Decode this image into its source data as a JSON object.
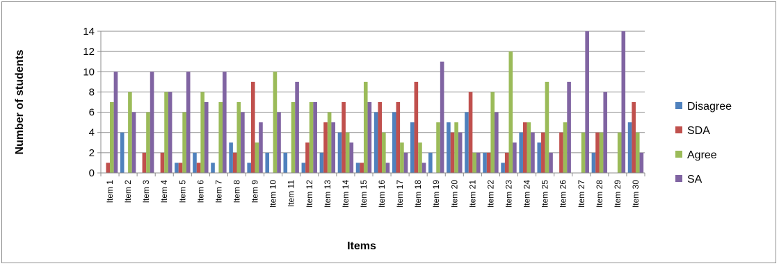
{
  "chart_data": {
    "type": "bar",
    "title": "",
    "xlabel": "Items",
    "ylabel": "Number of students",
    "ylim": [
      0,
      14
    ],
    "yticks": [
      0,
      2,
      4,
      6,
      8,
      10,
      12,
      14
    ],
    "grid": true,
    "legend_position": "right",
    "categories": [
      "Item 1",
      "Item 2",
      "Item 3",
      "Item 4",
      "Item 5",
      "Item 6",
      "Item 7",
      "Item 8",
      "Item 9",
      "Item 10",
      "Item 11",
      "Item 12",
      "Item 13",
      "Item 14",
      "Item 15",
      "Item 16",
      "Item 17",
      "Item 18",
      "Item 19",
      "Item 20",
      "Item 21",
      "Item 22",
      "Item 23",
      "Item 24",
      "Item 25",
      "Item 26",
      "Item 27",
      "Item 28",
      "Item 29",
      "Item 30"
    ],
    "series": [
      {
        "name": "Disagree",
        "color": "#4f81bd",
        "values": [
          0,
          4,
          0,
          0,
          1,
          2,
          1,
          3,
          1,
          2,
          2,
          1,
          2,
          4,
          1,
          6,
          6,
          5,
          2,
          5,
          6,
          2,
          1,
          4,
          3,
          0,
          0,
          2,
          0,
          5
        ]
      },
      {
        "name": "SDA",
        "color": "#c0504d",
        "values": [
          1,
          0,
          2,
          2,
          1,
          1,
          0,
          2,
          9,
          0,
          0,
          3,
          5,
          7,
          1,
          7,
          7,
          9,
          0,
          4,
          8,
          2,
          2,
          5,
          4,
          4,
          0,
          4,
          0,
          7
        ]
      },
      {
        "name": "Agree",
        "color": "#9bbb59",
        "values": [
          7,
          8,
          6,
          8,
          6,
          8,
          7,
          7,
          3,
          10,
          7,
          7,
          6,
          4,
          9,
          4,
          3,
          3,
          5,
          5,
          2,
          8,
          12,
          5,
          9,
          5,
          4,
          4,
          4,
          4
        ]
      },
      {
        "name": "SA",
        "color": "#8064a2",
        "values": [
          10,
          6,
          10,
          8,
          10,
          7,
          10,
          6,
          5,
          6,
          9,
          7,
          5,
          3,
          7,
          1,
          2,
          1,
          11,
          4,
          2,
          6,
          3,
          4,
          2,
          9,
          14,
          8,
          14,
          2
        ]
      }
    ]
  }
}
